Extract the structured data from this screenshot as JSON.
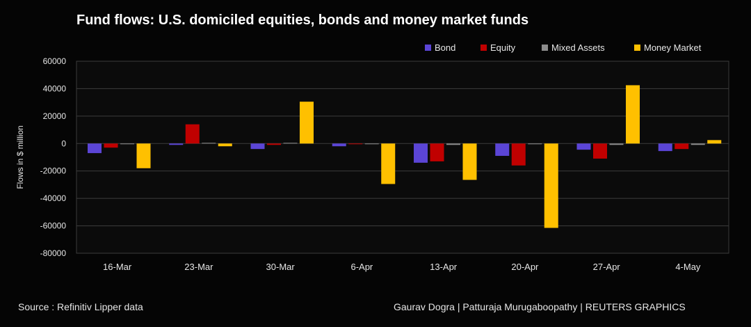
{
  "page": {
    "title": "Fund flows: U.S. domiciled equities, bonds and money market funds",
    "source": "Source : Refinitiv Lipper data",
    "credit": "Gaurav Dogra | Patturaja Murugaboopathy | REUTERS GRAPHICS"
  },
  "colors": {
    "background": "#050505",
    "plot_background": "#0b0b0b",
    "gridline": "#3c3c3c",
    "text": "#e6e6e6"
  },
  "chart_data": {
    "type": "bar",
    "title": "Fund flows: U.S. domiciled equities, bonds and money market funds",
    "xlabel": "",
    "ylabel": "Flows in $ million",
    "ylim": [
      -80000,
      60000
    ],
    "yticks": [
      60000,
      40000,
      20000,
      0,
      -20000,
      -40000,
      -60000,
      -80000
    ],
    "ytick_labels": [
      "60000",
      "40000",
      "20000",
      "0",
      "-20000",
      "-40000",
      "-60000",
      "-80000"
    ],
    "grid": true,
    "legend_position": "top-right",
    "categories": [
      "16-Mar",
      "23-Mar",
      "30-Mar",
      "6-Apr",
      "13-Apr",
      "20-Apr",
      "27-Apr",
      "4-May"
    ],
    "series": [
      {
        "name": "Bond",
        "color": "#5b45d6",
        "values": [
          -7000,
          -1000,
          -4000,
          -2000,
          -14000,
          -9000,
          -4500,
          -5500
        ]
      },
      {
        "name": "Equity",
        "color": "#c00000",
        "values": [
          -3000,
          14000,
          -1000,
          -500,
          -13000,
          -16000,
          -11000,
          -4000
        ]
      },
      {
        "name": "Mixed Assets",
        "color": "#8c8c8c",
        "values": [
          -500,
          500,
          500,
          -500,
          -1000,
          -500,
          -1000,
          -1000
        ]
      },
      {
        "name": "Money Market",
        "color": "#ffc000",
        "values": [
          -18000,
          -2000,
          30500,
          -29500,
          -26500,
          -61500,
          42500,
          2500
        ]
      }
    ]
  }
}
